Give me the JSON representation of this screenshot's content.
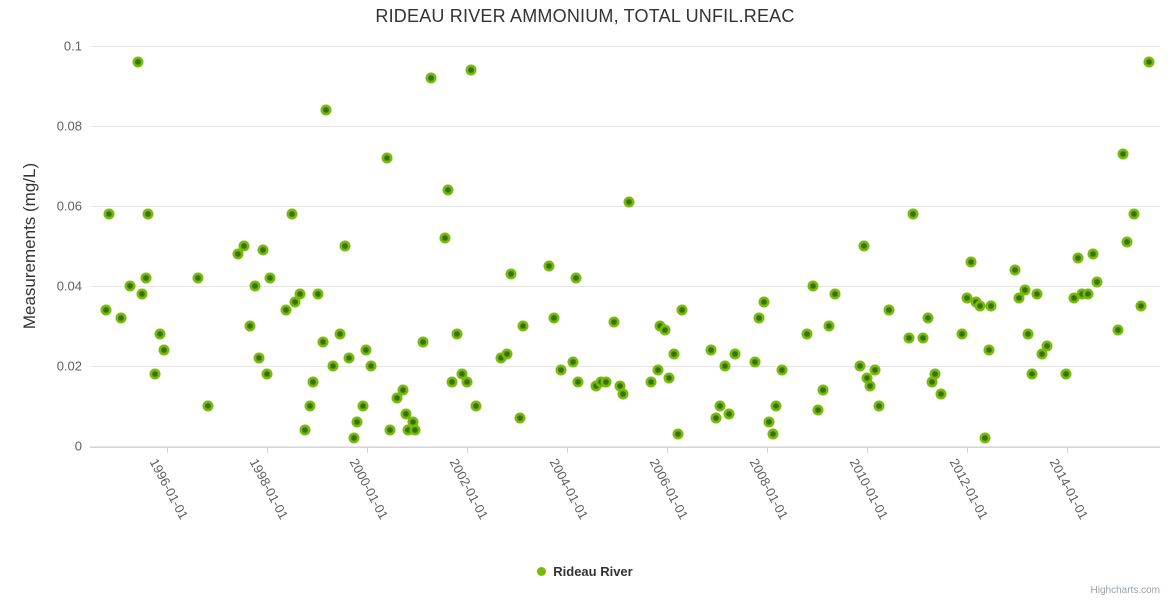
{
  "title": "RIDEAU RIVER AMMONIUM, TOTAL UNFIL.REAC",
  "watermark": "Highcharts.com",
  "legend": {
    "items": [
      {
        "label": "Rideau River",
        "marker_color": "#77ba09"
      }
    ]
  },
  "chart_data": {
    "type": "scatter",
    "title": "RIDEAU RIVER AMMONIUM, TOTAL UNFIL.REAC",
    "xlabel": "",
    "ylabel": "Measurements (mg/L)",
    "ylim": [
      0,
      0.1
    ],
    "xlim": [
      1994.46,
      2015.86
    ],
    "yticks": [
      0,
      0.02,
      0.04,
      0.06,
      0.08,
      0.1
    ],
    "ytick_labels": [
      "0",
      "0.02",
      "0.04",
      "0.06",
      "0.08",
      "0.1"
    ],
    "xticks": [
      1996,
      1998,
      2000,
      2002,
      2004,
      2006,
      2008,
      2010,
      2012,
      2014
    ],
    "xtick_labels": [
      "1996-01-01",
      "1998-01-01",
      "2000-01-01",
      "2002-01-01",
      "2004-01-01",
      "2006-01-01",
      "2008-01-01",
      "2010-01-01",
      "2012-01-01",
      "2014-01-01"
    ],
    "grid": "horizontal",
    "legend_position": "bottom-center",
    "colors": {
      "marker_ring": "#77ba09",
      "marker_core": "#39700b",
      "grid": "#e6e6e6",
      "axis_line": "#ccd6eb",
      "title_text": "#333333",
      "tick_label": "#606060"
    },
    "series": [
      {
        "name": "Rideau River",
        "points": [
          [
            1994.77,
            0.034
          ],
          [
            1994.83,
            0.058
          ],
          [
            1995.07,
            0.032
          ],
          [
            1995.25,
            0.04
          ],
          [
            1995.42,
            0.096
          ],
          [
            1995.5,
            0.038
          ],
          [
            1995.57,
            0.042
          ],
          [
            1995.61,
            0.058
          ],
          [
            1995.75,
            0.018
          ],
          [
            1995.85,
            0.028
          ],
          [
            1995.94,
            0.024
          ],
          [
            1996.61,
            0.042
          ],
          [
            1996.82,
            0.01
          ],
          [
            1997.41,
            0.048
          ],
          [
            1997.54,
            0.05
          ],
          [
            1997.65,
            0.03
          ],
          [
            1997.75,
            0.04
          ],
          [
            1997.84,
            0.022
          ],
          [
            1997.91,
            0.049
          ],
          [
            1997.99,
            0.018
          ],
          [
            1998.06,
            0.042
          ],
          [
            1998.38,
            0.034
          ],
          [
            1998.5,
            0.058
          ],
          [
            1998.56,
            0.036
          ],
          [
            1998.66,
            0.038
          ],
          [
            1998.75,
            0.004
          ],
          [
            1998.85,
            0.01
          ],
          [
            1998.92,
            0.016
          ],
          [
            1999.01,
            0.038
          ],
          [
            1999.11,
            0.026
          ],
          [
            1999.18,
            0.084
          ],
          [
            1999.31,
            0.02
          ],
          [
            1999.45,
            0.028
          ],
          [
            1999.55,
            0.05
          ],
          [
            1999.63,
            0.022
          ],
          [
            1999.73,
            0.002
          ],
          [
            1999.8,
            0.006
          ],
          [
            1999.91,
            0.01
          ],
          [
            1999.97,
            0.024
          ],
          [
            2000.07,
            0.02
          ],
          [
            2000.39,
            0.072
          ],
          [
            2000.46,
            0.004
          ],
          [
            2000.59,
            0.012
          ],
          [
            2000.71,
            0.014
          ],
          [
            2000.77,
            0.008
          ],
          [
            2000.81,
            0.004
          ],
          [
            2000.91,
            0.006
          ],
          [
            2000.96,
            0.004
          ],
          [
            2001.11,
            0.026
          ],
          [
            2001.27,
            0.092
          ],
          [
            2001.56,
            0.052
          ],
          [
            2001.62,
            0.064
          ],
          [
            2001.69,
            0.016
          ],
          [
            2001.8,
            0.028
          ],
          [
            2001.89,
            0.018
          ],
          [
            2002.0,
            0.016
          ],
          [
            2002.07,
            0.094
          ],
          [
            2002.18,
            0.01
          ],
          [
            2002.67,
            0.022
          ],
          [
            2002.79,
            0.023
          ],
          [
            2002.87,
            0.043
          ],
          [
            2003.05,
            0.007
          ],
          [
            2003.11,
            0.03
          ],
          [
            2003.64,
            0.045
          ],
          [
            2003.73,
            0.032
          ],
          [
            2003.87,
            0.019
          ],
          [
            2004.12,
            0.021
          ],
          [
            2004.17,
            0.042
          ],
          [
            2004.21,
            0.016
          ],
          [
            2004.57,
            0.015
          ],
          [
            2004.67,
            0.016
          ],
          [
            2004.77,
            0.016
          ],
          [
            2004.93,
            0.031
          ],
          [
            2005.05,
            0.015
          ],
          [
            2005.11,
            0.013
          ],
          [
            2005.23,
            0.061
          ],
          [
            2005.67,
            0.016
          ],
          [
            2005.81,
            0.019
          ],
          [
            2005.85,
            0.03
          ],
          [
            2005.95,
            0.029
          ],
          [
            2006.03,
            0.017
          ],
          [
            2006.14,
            0.023
          ],
          [
            2006.21,
            0.003
          ],
          [
            2006.29,
            0.034
          ],
          [
            2006.88,
            0.024
          ],
          [
            2006.97,
            0.007
          ],
          [
            2007.06,
            0.01
          ],
          [
            2007.15,
            0.02
          ],
          [
            2007.23,
            0.008
          ],
          [
            2007.35,
            0.023
          ],
          [
            2007.75,
            0.021
          ],
          [
            2007.83,
            0.032
          ],
          [
            2007.93,
            0.036
          ],
          [
            2008.04,
            0.006
          ],
          [
            2008.12,
            0.003
          ],
          [
            2008.18,
            0.01
          ],
          [
            2008.29,
            0.019
          ],
          [
            2008.8,
            0.028
          ],
          [
            2008.91,
            0.04
          ],
          [
            2009.01,
            0.009
          ],
          [
            2009.11,
            0.014
          ],
          [
            2009.23,
            0.03
          ],
          [
            2009.35,
            0.038
          ],
          [
            2009.85,
            0.02
          ],
          [
            2009.94,
            0.05
          ],
          [
            2009.99,
            0.017
          ],
          [
            2010.06,
            0.015
          ],
          [
            2010.15,
            0.019
          ],
          [
            2010.24,
            0.01
          ],
          [
            2010.43,
            0.034
          ],
          [
            2010.84,
            0.027
          ],
          [
            2010.92,
            0.058
          ],
          [
            2011.12,
            0.027
          ],
          [
            2011.21,
            0.032
          ],
          [
            2011.29,
            0.016
          ],
          [
            2011.35,
            0.018
          ],
          [
            2011.47,
            0.013
          ],
          [
            2011.9,
            0.028
          ],
          [
            2012.0,
            0.037
          ],
          [
            2012.07,
            0.046
          ],
          [
            2012.17,
            0.036
          ],
          [
            2012.25,
            0.035
          ],
          [
            2012.35,
            0.002
          ],
          [
            2012.43,
            0.024
          ],
          [
            2012.48,
            0.035
          ],
          [
            2012.95,
            0.044
          ],
          [
            2013.03,
            0.037
          ],
          [
            2013.15,
            0.039
          ],
          [
            2013.21,
            0.028
          ],
          [
            2013.3,
            0.018
          ],
          [
            2013.39,
            0.038
          ],
          [
            2013.49,
            0.023
          ],
          [
            2013.59,
            0.025
          ],
          [
            2013.98,
            0.018
          ],
          [
            2014.13,
            0.037
          ],
          [
            2014.21,
            0.047
          ],
          [
            2014.29,
            0.038
          ],
          [
            2014.41,
            0.038
          ],
          [
            2014.52,
            0.048
          ],
          [
            2014.59,
            0.041
          ],
          [
            2015.01,
            0.029
          ],
          [
            2015.11,
            0.073
          ],
          [
            2015.19,
            0.051
          ],
          [
            2015.33,
            0.058
          ],
          [
            2015.47,
            0.035
          ],
          [
            2015.63,
            0.096
          ]
        ]
      }
    ]
  }
}
